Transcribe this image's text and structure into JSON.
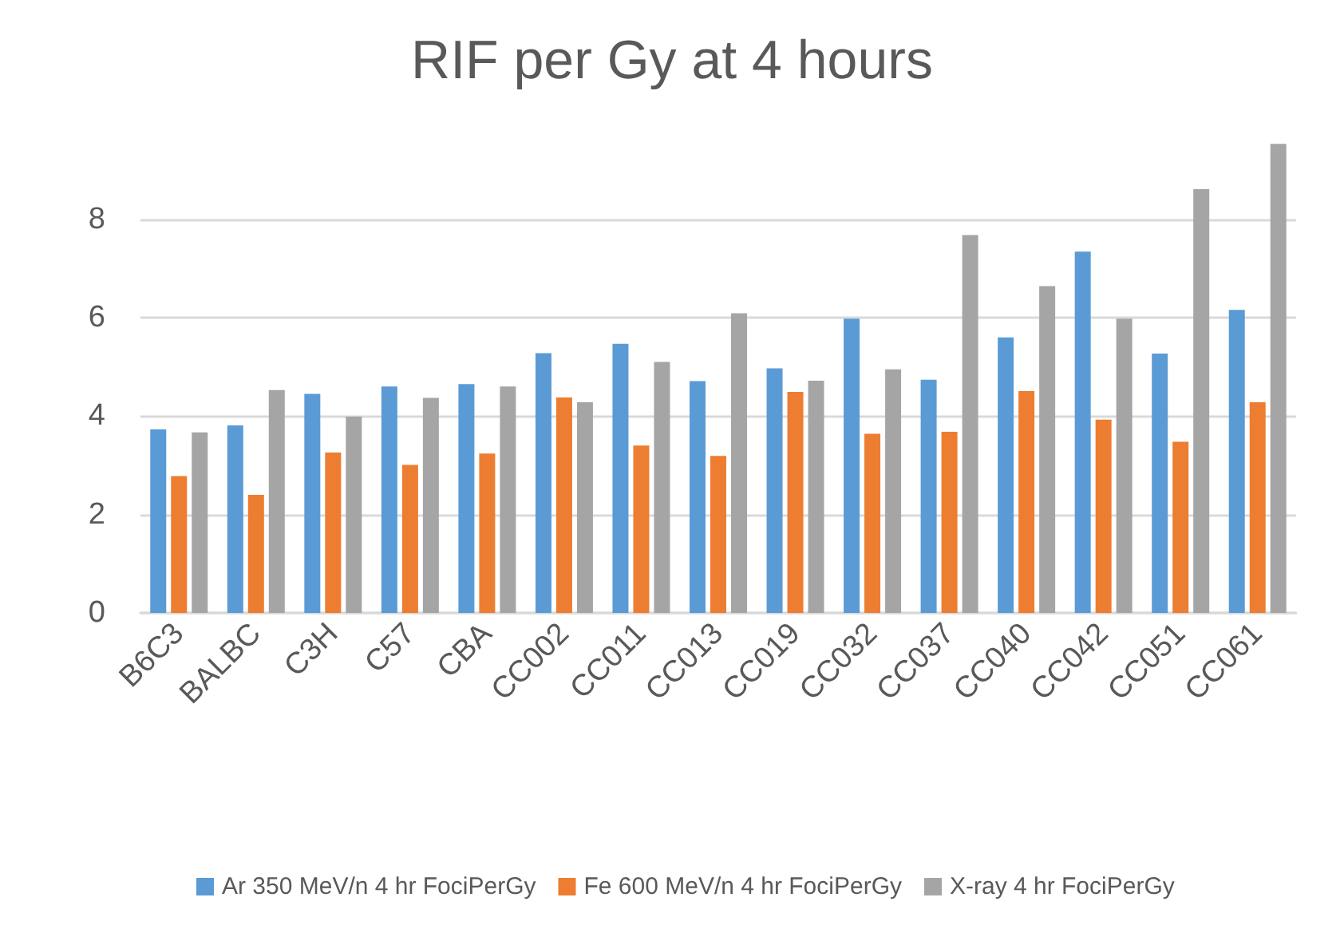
{
  "chart_data": {
    "type": "bar",
    "title": "RIF per Gy at 4 hours",
    "categories": [
      "B6C3",
      "BALBC",
      "C3H",
      "C57",
      "CBA",
      "CC002",
      "CC011",
      "CC013",
      "CC019",
      "CC032",
      "CC037",
      "CC040",
      "CC042",
      "CC051",
      "CC061"
    ],
    "series": [
      {
        "name": "Ar 350 MeV/n 4 hr FociPerGy",
        "color": "#5b9bd5",
        "values": [
          3.73,
          3.81,
          4.45,
          4.6,
          4.65,
          5.28,
          5.47,
          4.71,
          4.97,
          5.98,
          4.74,
          5.6,
          7.34,
          5.27,
          6.16
        ]
      },
      {
        "name": "Fe 600 MeV/n 4 hr FociPerGy",
        "color": "#ed7d31",
        "values": [
          2.78,
          2.4,
          3.26,
          3.01,
          3.24,
          4.38,
          3.4,
          3.19,
          4.49,
          3.64,
          3.68,
          4.51,
          3.93,
          3.48,
          4.28
        ]
      },
      {
        "name": "X-ray 4 hr FociPerGy",
        "color": "#a5a5a5",
        "values": [
          3.67,
          4.53,
          3.99,
          4.37,
          4.6,
          4.28,
          5.1,
          6.09,
          4.72,
          4.95,
          7.68,
          6.64,
          5.98,
          8.61,
          9.53
        ]
      }
    ],
    "ylim": [
      0,
      9.6
    ],
    "yticks": [
      0,
      2,
      4,
      6,
      8
    ],
    "grid": "y",
    "legend": "bottom"
  }
}
